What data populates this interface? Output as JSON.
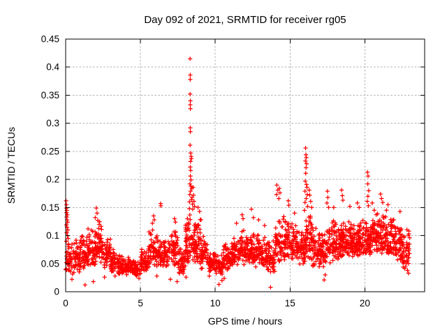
{
  "style": {
    "background": "#ffffff",
    "axis_color": "#000000",
    "grid_color": "#b0b0b0",
    "text_color": "#000000",
    "marker_color": "#ff0000"
  },
  "chart_data": {
    "type": "scatter",
    "title": "Day 092 of 2021, SRMTID for receiver rg05",
    "xlabel": "GPS time / hours",
    "ylabel": "SRMTID / TECUs",
    "xlim": [
      0,
      24
    ],
    "ylim": [
      0,
      0.45
    ],
    "xticks": [
      0,
      5,
      10,
      15,
      20
    ],
    "xtick_labels": [
      "0",
      "5",
      "10",
      "15",
      "20"
    ],
    "yticks": [
      0,
      0.05,
      0.1,
      0.15,
      0.2,
      0.25,
      0.3,
      0.35,
      0.4,
      0.45
    ],
    "ytick_labels": [
      "0",
      "0.05",
      "0.1",
      "0.15",
      "0.2",
      "0.25",
      "0.3",
      "0.35",
      "0.4",
      "0.45"
    ],
    "grid": true,
    "legend_position": "none",
    "series": [
      {
        "name": "SRMTID",
        "marker": "plus",
        "color": "#ff0000",
        "seed": 1337,
        "outlier_points": [
          [
            0.03,
            0.162
          ],
          [
            0.05,
            0.155
          ],
          [
            0.04,
            0.149
          ],
          [
            0.08,
            0.145
          ],
          [
            0.06,
            0.141
          ],
          [
            0.11,
            0.137
          ],
          [
            0.07,
            0.133
          ],
          [
            0.1,
            0.128
          ],
          [
            0.13,
            0.124
          ],
          [
            0.05,
            0.119
          ],
          [
            0.09,
            0.115
          ],
          [
            0.15,
            0.11
          ],
          [
            0.07,
            0.105
          ],
          [
            0.12,
            0.1
          ],
          [
            0.17,
            0.095
          ],
          [
            0.04,
            0.09
          ],
          [
            0.2,
            0.085
          ],
          [
            0.42,
            0.022
          ],
          [
            1.3,
            0.012
          ],
          [
            1.85,
            0.018
          ],
          [
            2.6,
            0.026
          ],
          [
            3.3,
            0.028
          ],
          [
            4.9,
            0.024
          ],
          [
            6.1,
            0.028
          ],
          [
            7.0,
            0.022
          ],
          [
            7.45,
            0.018
          ],
          [
            8.05,
            0.026
          ],
          [
            9.6,
            0.028
          ],
          [
            10.25,
            0.013
          ],
          [
            10.45,
            0.02
          ],
          [
            10.6,
            0.024
          ],
          [
            13.7,
            0.008
          ],
          [
            17.28,
            0.021
          ],
          [
            17.35,
            0.03
          ],
          [
            22.85,
            0.038
          ],
          [
            22.92,
            0.033
          ],
          [
            1.5,
            0.112
          ],
          [
            2.05,
            0.149
          ],
          [
            2.1,
            0.14
          ],
          [
            1.98,
            0.132
          ],
          [
            2.15,
            0.127
          ],
          [
            5.8,
            0.122
          ],
          [
            5.88,
            0.135
          ],
          [
            5.92,
            0.128
          ],
          [
            6.35,
            0.157
          ],
          [
            6.37,
            0.153
          ],
          [
            7.28,
            0.13
          ],
          [
            7.34,
            0.124
          ],
          [
            8.32,
            0.415
          ],
          [
            8.33,
            0.386
          ],
          [
            8.33,
            0.378
          ],
          [
            8.32,
            0.352
          ],
          [
            8.34,
            0.34
          ],
          [
            8.33,
            0.333
          ],
          [
            8.34,
            0.326
          ],
          [
            8.33,
            0.292
          ],
          [
            8.34,
            0.285
          ],
          [
            8.32,
            0.261
          ],
          [
            8.36,
            0.247
          ],
          [
            8.39,
            0.241
          ],
          [
            8.41,
            0.237
          ],
          [
            8.35,
            0.232
          ],
          [
            8.33,
            0.222
          ],
          [
            8.36,
            0.216
          ],
          [
            8.34,
            0.206
          ],
          [
            8.38,
            0.199
          ],
          [
            8.31,
            0.192
          ],
          [
            8.37,
            0.188
          ],
          [
            8.43,
            0.184
          ],
          [
            8.35,
            0.179
          ],
          [
            8.3,
            0.173
          ],
          [
            8.45,
            0.168
          ],
          [
            8.41,
            0.164
          ],
          [
            8.28,
            0.16
          ],
          [
            8.48,
            0.156
          ],
          [
            8.52,
            0.186
          ],
          [
            8.55,
            0.172
          ],
          [
            8.58,
            0.161
          ],
          [
            8.62,
            0.152
          ],
          [
            8.5,
            0.147
          ],
          [
            8.27,
            0.148
          ],
          [
            8.85,
            0.15
          ],
          [
            8.95,
            0.143
          ],
          [
            9.05,
            0.128
          ],
          [
            11.42,
            0.122
          ],
          [
            11.8,
            0.137
          ],
          [
            11.86,
            0.13
          ],
          [
            12.42,
            0.147
          ],
          [
            12.55,
            0.132
          ],
          [
            12.9,
            0.128
          ],
          [
            13.3,
            0.118
          ],
          [
            14.12,
            0.19
          ],
          [
            14.18,
            0.181
          ],
          [
            14.1,
            0.173
          ],
          [
            14.28,
            0.184
          ],
          [
            14.33,
            0.176
          ],
          [
            14.25,
            0.166
          ],
          [
            14.88,
            0.162
          ],
          [
            14.92,
            0.154
          ],
          [
            15.3,
            0.14
          ],
          [
            16.04,
            0.256
          ],
          [
            16.06,
            0.244
          ],
          [
            16.09,
            0.239
          ],
          [
            16.03,
            0.233
          ],
          [
            16.11,
            0.228
          ],
          [
            16.07,
            0.221
          ],
          [
            16.05,
            0.211
          ],
          [
            16.02,
            0.197
          ],
          [
            16.1,
            0.191
          ],
          [
            16.13,
            0.186
          ],
          [
            16.0,
            0.179
          ],
          [
            16.15,
            0.173
          ],
          [
            16.08,
            0.166
          ],
          [
            16.0,
            0.159
          ],
          [
            16.18,
            0.152
          ],
          [
            15.97,
            0.145
          ],
          [
            16.28,
            0.181
          ],
          [
            16.32,
            0.172
          ],
          [
            16.38,
            0.161
          ],
          [
            16.45,
            0.15
          ],
          [
            17.5,
            0.179
          ],
          [
            17.53,
            0.168
          ],
          [
            17.47,
            0.158
          ],
          [
            17.58,
            0.15
          ],
          [
            17.92,
            0.15
          ],
          [
            18.45,
            0.181
          ],
          [
            18.5,
            0.171
          ],
          [
            18.53,
            0.163
          ],
          [
            19.0,
            0.152
          ],
          [
            19.5,
            0.158
          ],
          [
            19.62,
            0.15
          ],
          [
            20.18,
            0.213
          ],
          [
            20.22,
            0.206
          ],
          [
            20.2,
            0.192
          ],
          [
            20.26,
            0.18
          ],
          [
            20.21,
            0.17
          ],
          [
            20.16,
            0.161
          ],
          [
            20.24,
            0.153
          ],
          [
            20.5,
            0.158
          ],
          [
            21.05,
            0.174
          ],
          [
            21.12,
            0.166
          ],
          [
            21.2,
            0.159
          ],
          [
            21.55,
            0.155
          ],
          [
            22.35,
            0.143
          ],
          [
            22.95,
            0.108
          ],
          [
            23.0,
            0.096
          ],
          [
            22.98,
            0.085
          ]
        ],
        "band_profile": {
          "bin_width_hours": 0.5,
          "bins_format": [
            "hour_center",
            "value_low",
            "value_high",
            "count"
          ],
          "bins": [
            [
              0.25,
              0.03,
              0.1,
              42
            ],
            [
              0.75,
              0.032,
              0.105,
              48
            ],
            [
              1.25,
              0.038,
              0.112,
              50
            ],
            [
              1.75,
              0.042,
              0.118,
              52
            ],
            [
              2.25,
              0.048,
              0.128,
              52
            ],
            [
              2.75,
              0.042,
              0.102,
              48
            ],
            [
              3.25,
              0.034,
              0.08,
              48
            ],
            [
              3.75,
              0.03,
              0.066,
              48
            ],
            [
              4.25,
              0.03,
              0.062,
              52
            ],
            [
              4.75,
              0.028,
              0.06,
              52
            ],
            [
              5.25,
              0.034,
              0.08,
              48
            ],
            [
              5.75,
              0.04,
              0.118,
              52
            ],
            [
              6.25,
              0.044,
              0.108,
              48
            ],
            [
              6.75,
              0.04,
              0.1,
              48
            ],
            [
              7.25,
              0.044,
              0.118,
              52
            ],
            [
              7.75,
              0.03,
              0.085,
              48
            ],
            [
              8.25,
              0.048,
              0.15,
              58
            ],
            [
              8.75,
              0.05,
              0.14,
              58
            ],
            [
              9.25,
              0.04,
              0.1,
              48
            ],
            [
              9.75,
              0.034,
              0.08,
              46
            ],
            [
              10.25,
              0.03,
              0.07,
              46
            ],
            [
              10.75,
              0.038,
              0.09,
              48
            ],
            [
              11.25,
              0.044,
              0.1,
              50
            ],
            [
              11.75,
              0.048,
              0.112,
              52
            ],
            [
              12.25,
              0.048,
              0.108,
              52
            ],
            [
              12.75,
              0.044,
              0.112,
              52
            ],
            [
              13.25,
              0.04,
              0.1,
              48
            ],
            [
              13.75,
              0.034,
              0.095,
              48
            ],
            [
              14.25,
              0.05,
              0.138,
              52
            ],
            [
              14.75,
              0.055,
              0.148,
              52
            ],
            [
              15.25,
              0.05,
              0.128,
              52
            ],
            [
              15.75,
              0.048,
              0.118,
              52
            ],
            [
              16.25,
              0.055,
              0.148,
              56
            ],
            [
              16.75,
              0.044,
              0.118,
              52
            ],
            [
              17.25,
              0.044,
              0.112,
              52
            ],
            [
              17.75,
              0.05,
              0.138,
              52
            ],
            [
              18.25,
              0.055,
              0.128,
              56
            ],
            [
              18.75,
              0.058,
              0.138,
              58
            ],
            [
              19.25,
              0.06,
              0.128,
              58
            ],
            [
              19.75,
              0.06,
              0.132,
              58
            ],
            [
              20.25,
              0.064,
              0.138,
              58
            ],
            [
              20.75,
              0.068,
              0.148,
              58
            ],
            [
              21.25,
              0.064,
              0.148,
              58
            ],
            [
              21.75,
              0.06,
              0.142,
              58
            ],
            [
              22.25,
              0.055,
              0.132,
              52
            ],
            [
              22.75,
              0.04,
              0.122,
              46
            ]
          ]
        }
      }
    ]
  }
}
